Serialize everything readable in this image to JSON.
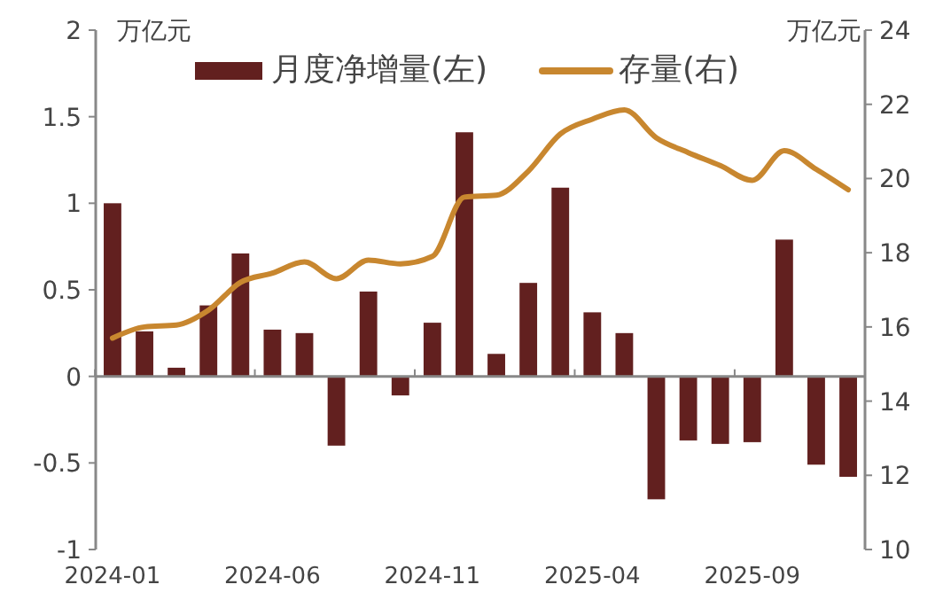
{
  "chart_data": {
    "type": "bar",
    "ylabel": "万亿元",
    "y2label": "万亿元",
    "categories": [
      "2024-01",
      null,
      null,
      null,
      null,
      "2024-06",
      null,
      null,
      null,
      null,
      "2024-11",
      null,
      null,
      null,
      null,
      "2025-04",
      null,
      null,
      null,
      null,
      "2025-09",
      null,
      null,
      null
    ],
    "series": [
      {
        "name": "月度净增量(左)",
        "color": "#62201f",
        "values": [
          1.0,
          0.26,
          0.05,
          0.41,
          0.71,
          0.27,
          0.25,
          -0.4,
          0.49,
          -0.11,
          0.31,
          1.41,
          0.13,
          0.54,
          1.09,
          0.37,
          0.25,
          -0.71,
          -0.37,
          -0.39,
          -0.38,
          0.79,
          -0.51,
          -0.58
        ]
      },
      {
        "name": "存量(右)",
        "type": "line",
        "axis": "y2",
        "color": "#c8872f",
        "values": [
          15.7,
          16.0,
          16.05,
          16.45,
          17.2,
          17.45,
          17.75,
          17.3,
          17.8,
          17.7,
          17.9,
          19.5,
          19.55,
          20.2,
          21.2,
          21.6,
          21.85,
          21.1,
          20.7,
          20.35,
          19.95,
          20.75,
          20.25,
          19.7
        ]
      }
    ],
    "ylim": [
      -1,
      2
    ],
    "yticks": [
      {
        "value": -1,
        "label": "-1"
      },
      {
        "value": -0.5,
        "label": "-0.5"
      },
      0,
      0.5,
      1,
      1.5,
      2
    ],
    "y2lim": [
      10,
      24
    ],
    "y2ticks": [
      10,
      12,
      14,
      16,
      18,
      20,
      22,
      24
    ],
    "legend": "top",
    "line_style": "solid",
    "marker": "none"
  }
}
